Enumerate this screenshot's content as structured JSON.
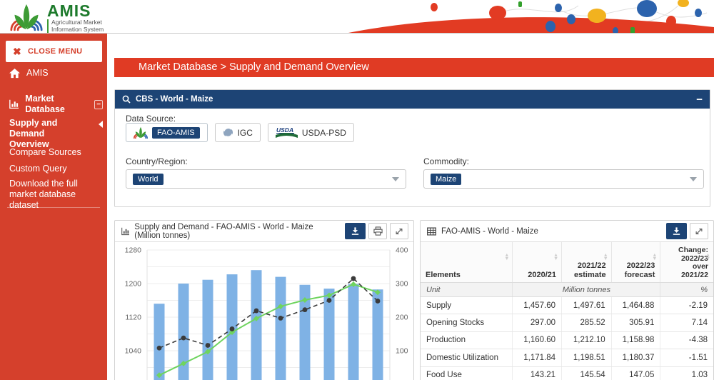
{
  "banner": {
    "title": "AMIS",
    "subtitle_line1": "Agricultural Market",
    "subtitle_line2": "Information System"
  },
  "sidebar": {
    "close_button": "CLOSE MENU",
    "items": [
      {
        "label": "AMIS"
      },
      {
        "label": "Market Database"
      },
      {
        "label": "Supply and Demand Overview"
      },
      {
        "label": "Compare Sources"
      },
      {
        "label": "Custom Query"
      },
      {
        "label": "Download the full market database dataset"
      }
    ]
  },
  "breadcrumb": {
    "text": "Market Database > Supply and Demand Overview"
  },
  "filters": {
    "panel_title": "CBS - World - Maize",
    "data_source_label": "Data Source:",
    "sources": [
      {
        "label": "FAO-AMIS",
        "selected": true
      },
      {
        "label": "IGC",
        "selected": false
      },
      {
        "label": "USDA-PSD",
        "selected": false,
        "logo_text": "USDA"
      }
    ],
    "country_label": "Country/Region:",
    "country_value": "World",
    "commodity_label": "Commodity:",
    "commodity_value": "Maize"
  },
  "chart_panel": {
    "title": "Supply and Demand - FAO-AMIS - World - Maize (Million tonnes)"
  },
  "chart_data": {
    "type": "bar",
    "title": "Supply and Demand - FAO-AMIS - World - Maize (Million tonnes)",
    "x_count": 10,
    "left_axis": {
      "tick_labels": [
        1280,
        1200,
        1120,
        1040
      ],
      "gridline_step": 40,
      "top_value": 1280,
      "bottom_value": 1000
    },
    "right_axis": {
      "tick_labels": [
        400,
        300,
        200,
        100
      ],
      "gridline_step": 50,
      "top_value": 400,
      "bottom_value": 50
    },
    "series": [
      {
        "name": "bars",
        "type": "bar",
        "axis": "left",
        "color": "#7fb2e5",
        "values": [
          1152,
          1200,
          1209,
          1222,
          1232,
          1216,
          1197,
          1188,
          1199,
          1186
        ]
      },
      {
        "name": "green-line",
        "type": "line",
        "axis": "right",
        "color": "#6fd45f",
        "marker": "diamond",
        "dashed": false,
        "values": [
          27,
          62,
          97,
          155,
          196,
          232,
          251,
          265,
          298,
          274
        ]
      },
      {
        "name": "black-dashed-line",
        "type": "line",
        "axis": "right",
        "color": "#3b3b3b",
        "marker": "circle",
        "dashed": true,
        "values": [
          108,
          138,
          116,
          165,
          219,
          197,
          222,
          250,
          315,
          248
        ]
      }
    ]
  },
  "table_panel": {
    "title": "FAO-AMIS - World - Maize",
    "columns": [
      [
        "Elements"
      ],
      [
        "2020/21"
      ],
      [
        "2021/22",
        "estimate"
      ],
      [
        "2022/23",
        "forecast"
      ],
      [
        "Change:",
        "2022/23",
        "over",
        "2021/22"
      ]
    ],
    "unit_row": {
      "label": "Unit",
      "center": "Million tonnes",
      "right": "%"
    },
    "rows": [
      [
        "Supply",
        "1,457.60",
        "1,497.61",
        "1,464.88",
        "-2.19"
      ],
      [
        "Opening Stocks",
        "297.00",
        "285.52",
        "305.91",
        "7.14"
      ],
      [
        "Production",
        "1,160.60",
        "1,212.10",
        "1,158.98",
        "-4.38"
      ],
      [
        "Domestic Utilization",
        "1,171.84",
        "1,198.51",
        "1,180.37",
        "-1.51"
      ],
      [
        "Food Use",
        "143.21",
        "145.54",
        "147.05",
        "1.03"
      ]
    ]
  },
  "colors": {
    "sidebar_red": "#d5402c",
    "breadcrumb_red": "#e03b24",
    "navy": "#1d4475",
    "bar_blue": "#7fb2e5",
    "line_green": "#6fd45f",
    "line_black": "#3b3b3b"
  }
}
